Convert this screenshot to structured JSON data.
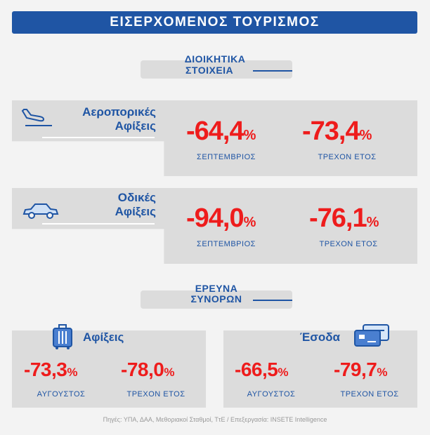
{
  "header": {
    "title": "ΕΙΣΕΡΧΟΜΕΝΟΣ ΤΟΥΡΙΣΜΟΣ"
  },
  "sections": {
    "admin": {
      "line1": "ΔΙΟΙΚΗΤΙΚΑ",
      "line2": "ΣΤΟΙΧΕΙΑ"
    },
    "survey": {
      "line1": "ΕΡΕΥΝΑ",
      "line2": "ΣΥΝΟΡΩΝ"
    }
  },
  "air": {
    "line1": "Αεροπορικές",
    "line2": "Αφίξεις",
    "icon": "airplane-landing-icon",
    "values": [
      {
        "number": "-64,4",
        "unit": "%",
        "label": "ΣΕΠΤΕΜΒΡΙΟΣ"
      },
      {
        "number": "-73,4",
        "unit": "%",
        "label": "ΤΡΕΧΟΝ ΕΤΟΣ"
      }
    ]
  },
  "road": {
    "line1": "Οδικές",
    "line2": "Αφίξεις",
    "icon": "car-icon",
    "values": [
      {
        "number": "-94,0",
        "unit": "%",
        "label": "ΣΕΠΤΕΜΒΡΙΟΣ"
      },
      {
        "number": "-76,1",
        "unit": "%",
        "label": "ΤΡΕΧΟΝ ΕΤΟΣ"
      }
    ]
  },
  "arrivals": {
    "title": "Αφίξεις",
    "icon": "suitcase-icon",
    "values": [
      {
        "number": "-73,3",
        "unit": "%",
        "label": "ΑΥΓΟΥΣΤΟΣ"
      },
      {
        "number": "-78,0",
        "unit": "%",
        "label": "ΤΡΕΧΟΝ ΕΤΟΣ"
      }
    ]
  },
  "receipts": {
    "title": "Έσοδα",
    "icon": "credit-card-icon",
    "values": [
      {
        "number": "-66,5",
        "unit": "%",
        "label": "ΑΥΓΟΥΣΤΟΣ"
      },
      {
        "number": "-79,7",
        "unit": "%",
        "label": "ΤΡΕΧΟΝ ΕΤΟΣ"
      }
    ]
  },
  "footer": {
    "source": "Πηγές: ΥΠΑ, ΔΑΑ, Μεθοριακοί Σταθμοί, ΤτΕ / Επεξεργασία: INSETE Intelligence"
  },
  "colors": {
    "accent": "#1f55a4",
    "negative": "#ee1c1c",
    "panel": "#dcdcdc",
    "background": "#f3f3f3"
  },
  "chart_data": {
    "type": "table",
    "rows": [
      {
        "category": "Αεροπορικές Αφίξεις",
        "ΣΕΠΤΕΜΒΡΙΟΣ": -64.4,
        "ΤΡΕΧΟΝ ΕΤΟΣ": -73.4
      },
      {
        "category": "Οδικές Αφίξεις",
        "ΣΕΠΤΕΜΒΡΙΟΣ": -94.0,
        "ΤΡΕΧΟΝ ΕΤΟΣ": -76.1
      },
      {
        "category": "Αφίξεις",
        "ΑΥΓΟΥΣΤΟΣ": -73.3,
        "ΤΡΕΧΟΝ ΕΤΟΣ": -78.0
      },
      {
        "category": "Έσοδα",
        "ΑΥΓΟΥΣΤΟΣ": -66.5,
        "ΤΡΕΧΟΝ ΕΤΟΣ": -79.7
      }
    ],
    "unit": "%"
  }
}
